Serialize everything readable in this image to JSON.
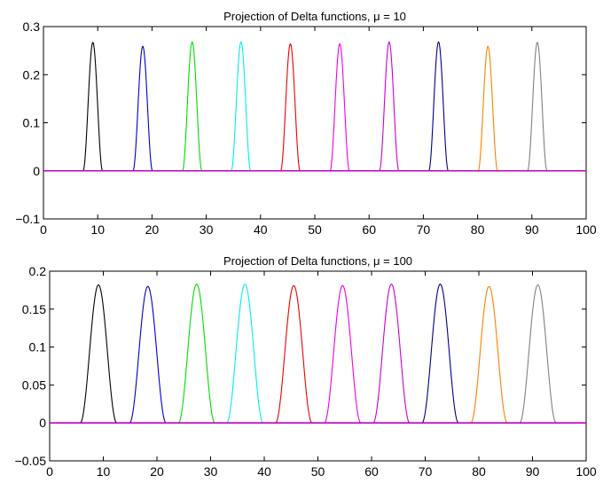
{
  "chart_data": [
    {
      "type": "line",
      "title": "Projection of Delta functions, μ = 10",
      "xlabel": "",
      "ylabel": "",
      "xlim": [
        0,
        100
      ],
      "ylim": [
        -0.1,
        0.3
      ],
      "xticks": [
        0,
        10,
        20,
        30,
        40,
        50,
        60,
        70,
        80,
        90,
        100
      ],
      "yticks": [
        -0.1,
        0,
        0.1,
        0.2,
        0.3
      ],
      "ytick_labels": [
        "−0.1",
        "0",
        "0.1",
        "0.2",
        "0.3"
      ],
      "grid": false,
      "baseline": {
        "y": 0,
        "color": "#c000c0"
      },
      "peak_half_width": 1.8,
      "series": [
        {
          "center": 9.1,
          "peak": 0.267,
          "color": "#000000"
        },
        {
          "center": 18.3,
          "peak": 0.259,
          "color": "#0000cc"
        },
        {
          "center": 27.4,
          "peak": 0.268,
          "color": "#00dd00"
        },
        {
          "center": 36.4,
          "peak": 0.268,
          "color": "#00eeee"
        },
        {
          "center": 45.5,
          "peak": 0.264,
          "color": "#ee0000"
        },
        {
          "center": 54.6,
          "peak": 0.264,
          "color": "#ee00ee"
        },
        {
          "center": 63.7,
          "peak": 0.268,
          "color": "#cc00cc"
        },
        {
          "center": 72.8,
          "peak": 0.268,
          "color": "#000088"
        },
        {
          "center": 81.9,
          "peak": 0.259,
          "color": "#ff8000"
        },
        {
          "center": 91.0,
          "peak": 0.267,
          "color": "#808080"
        }
      ]
    },
    {
      "type": "line",
      "title": "Projection of Delta functions, μ = 100",
      "xlabel": "",
      "ylabel": "",
      "xlim": [
        0,
        100
      ],
      "ylim": [
        -0.05,
        0.2
      ],
      "xticks": [
        0,
        10,
        20,
        30,
        40,
        50,
        60,
        70,
        80,
        90,
        100
      ],
      "yticks": [
        -0.05,
        0,
        0.05,
        0.1,
        0.15,
        0.2
      ],
      "ytick_labels": [
        "−0.05",
        "0",
        "0.05",
        "0.1",
        "0.15",
        "0.2"
      ],
      "grid": false,
      "baseline": {
        "y": 0,
        "color": "#c000c0"
      },
      "peak_half_width": 3.4,
      "series": [
        {
          "center": 9.1,
          "peak": 0.182,
          "color": "#000000"
        },
        {
          "center": 18.3,
          "peak": 0.18,
          "color": "#0000cc"
        },
        {
          "center": 27.4,
          "peak": 0.183,
          "color": "#00dd00"
        },
        {
          "center": 36.4,
          "peak": 0.183,
          "color": "#00eeee"
        },
        {
          "center": 45.5,
          "peak": 0.181,
          "color": "#ee0000"
        },
        {
          "center": 54.6,
          "peak": 0.181,
          "color": "#ee00ee"
        },
        {
          "center": 63.7,
          "peak": 0.183,
          "color": "#cc00cc"
        },
        {
          "center": 72.8,
          "peak": 0.183,
          "color": "#000088"
        },
        {
          "center": 81.9,
          "peak": 0.18,
          "color": "#ff8000"
        },
        {
          "center": 91.0,
          "peak": 0.182,
          "color": "#808080"
        }
      ]
    }
  ]
}
